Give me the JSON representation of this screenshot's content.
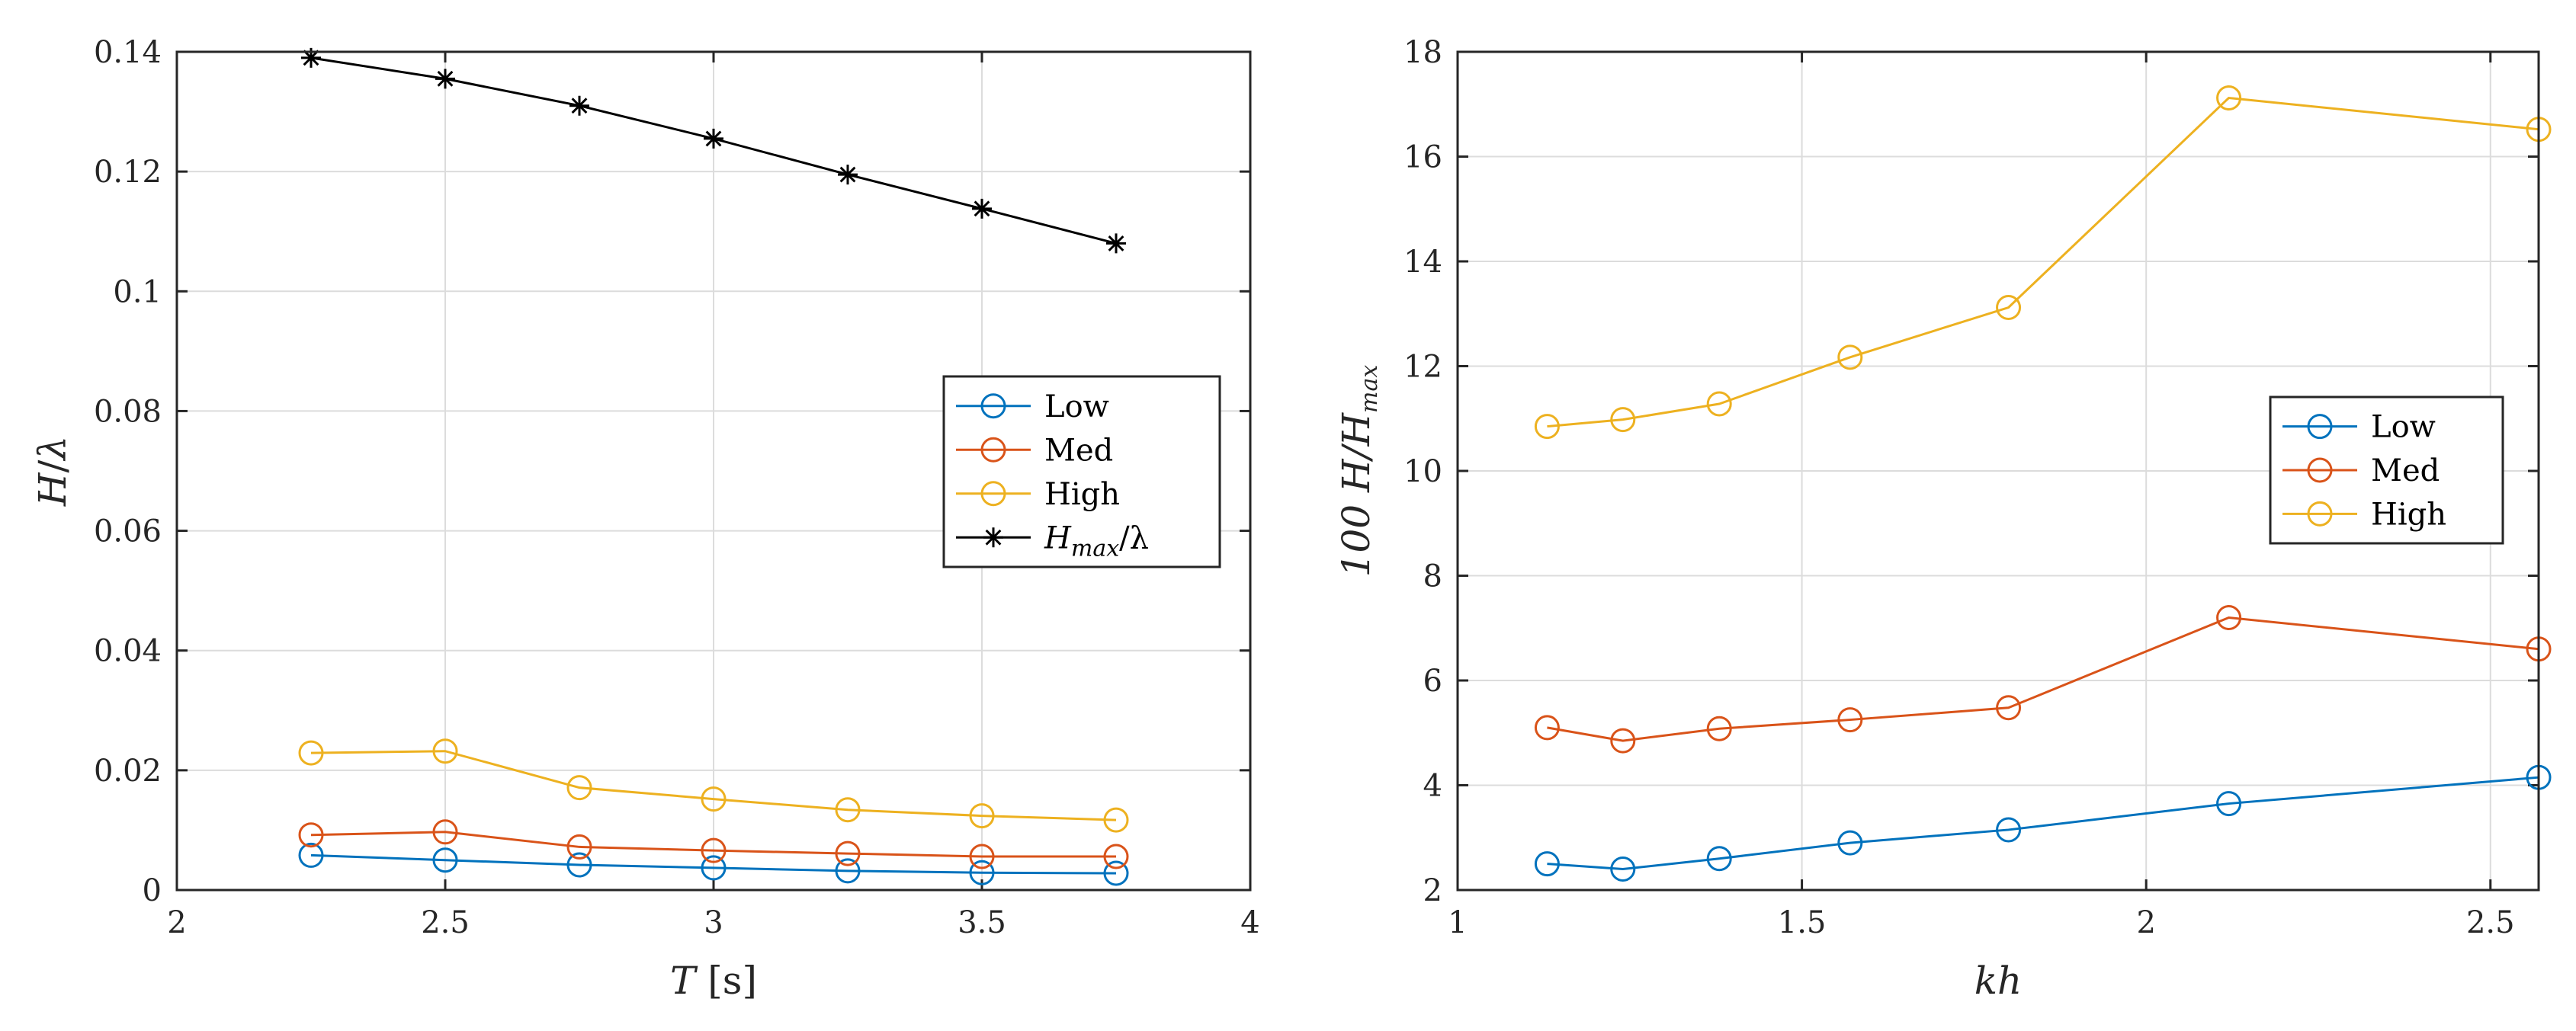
{
  "chart_data": [
    {
      "type": "line",
      "title": "",
      "xlabel": "T [s]",
      "xlabel_parts": {
        "var": "T",
        "unit": "[s]"
      },
      "ylabel": "H/λ",
      "ylabel_parts": {
        "num": "H",
        "slash": "/",
        "den": "λ"
      },
      "xlim": [
        2,
        4
      ],
      "ylim": [
        0,
        0.14
      ],
      "xticks": [
        "2",
        "2.5",
        "3",
        "3.5",
        "4"
      ],
      "yticks": [
        "0",
        "0.02",
        "0.04",
        "0.06",
        "0.08",
        "0.1",
        "0.12",
        "0.14"
      ],
      "grid": true,
      "legend_position": "right-middle",
      "x": [
        2.25,
        2.5,
        2.75,
        3.0,
        3.25,
        3.5,
        3.75
      ],
      "series": [
        {
          "name": "Low",
          "label": "Low",
          "color": "#0072BD",
          "marker": "circle",
          "values": [
            0.0058,
            0.005,
            0.0042,
            0.0037,
            0.0032,
            0.0029,
            0.0028
          ]
        },
        {
          "name": "Med",
          "label": "Med",
          "color": "#D95319",
          "marker": "circle",
          "values": [
            0.0092,
            0.0097,
            0.0072,
            0.0066,
            0.0061,
            0.0056,
            0.0056
          ]
        },
        {
          "name": "High",
          "label": "High",
          "color": "#EDB120",
          "marker": "circle",
          "values": [
            0.0229,
            0.0232,
            0.0171,
            0.0152,
            0.0134,
            0.0124,
            0.0117
          ]
        },
        {
          "name": "Hmax/λ",
          "label": "H",
          "label_sub": "max",
          "label_tail": "/λ",
          "color": "#000000",
          "marker": "asterisk",
          "values": [
            0.139,
            0.1355,
            0.131,
            0.1255,
            0.1195,
            0.1138,
            0.108
          ]
        }
      ]
    },
    {
      "type": "line",
      "title": "",
      "xlabel": "kh",
      "ylabel": "100 H/Hmax",
      "ylabel_parts": {
        "num": "100 H/H",
        "sub": "max"
      },
      "xlim": [
        1,
        2.57
      ],
      "ylim": [
        2,
        18
      ],
      "xticks": [
        "1",
        "1.5",
        "2",
        "2.5"
      ],
      "yticks": [
        "2",
        "4",
        "6",
        "8",
        "10",
        "12",
        "14",
        "16",
        "18"
      ],
      "grid": true,
      "legend_position": "right-middle",
      "x": [
        1.13,
        1.24,
        1.38,
        1.57,
        1.8,
        2.12,
        2.57
      ],
      "series": [
        {
          "name": "Low",
          "label": "Low",
          "color": "#0072BD",
          "marker": "circle",
          "values": [
            2.5,
            2.4,
            2.6,
            2.9,
            3.15,
            3.65,
            4.15
          ]
        },
        {
          "name": "Med",
          "label": "Med",
          "color": "#D95319",
          "marker": "circle",
          "values": [
            5.1,
            4.85,
            5.08,
            5.25,
            5.48,
            7.2,
            6.6
          ]
        },
        {
          "name": "High",
          "label": "High",
          "color": "#EDB120",
          "marker": "circle",
          "values": [
            10.85,
            10.98,
            11.28,
            12.17,
            13.12,
            17.12,
            16.52
          ]
        }
      ]
    }
  ]
}
